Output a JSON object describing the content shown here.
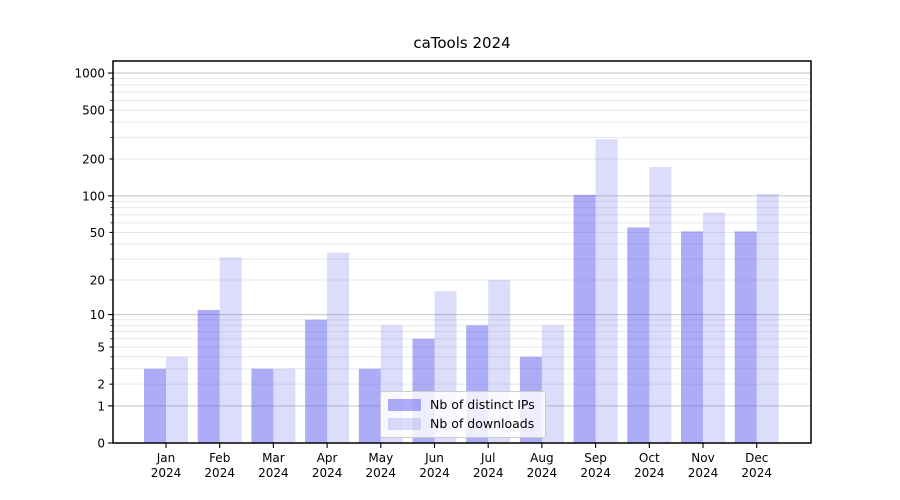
{
  "title": "caTools 2024",
  "chart_data": {
    "type": "bar",
    "title": "caTools 2024",
    "scale": "log1p",
    "categories": [
      "Jan 2024",
      "Feb 2024",
      "Mar 2024",
      "Apr 2024",
      "May 2024",
      "Jun 2024",
      "Jul 2024",
      "Aug 2024",
      "Sep 2024",
      "Oct 2024",
      "Nov 2024",
      "Dec 2024"
    ],
    "series": [
      {
        "name": "Nb of distinct IPs",
        "values": [
          3,
          11,
          3,
          9,
          3,
          6,
          8,
          4,
          102,
          55,
          51,
          51
        ]
      },
      {
        "name": "Nb of downloads",
        "values": [
          4,
          31,
          3,
          34,
          8,
          16,
          20,
          8,
          290,
          172,
          73,
          104
        ]
      }
    ],
    "yticks": [
      0,
      1,
      2,
      5,
      10,
      20,
      50,
      100,
      200,
      500,
      1000
    ],
    "major_gridlines": [
      1,
      10,
      100,
      1000
    ],
    "minor_gridlines": [
      2,
      3,
      4,
      5,
      6,
      7,
      8,
      9,
      20,
      30,
      40,
      50,
      60,
      70,
      80,
      90,
      200,
      300,
      400,
      500,
      600,
      700,
      800,
      900
    ],
    "ylim": [
      0,
      1252
    ],
    "grid": true,
    "legend_position": "lower center",
    "colors": {
      "bar_dark": "rgba(95,95,240,0.52)",
      "bar_light": "rgba(130,130,242,0.28)",
      "major_grid": "#c3c3c3",
      "minor_grid": "#e8e8e8",
      "spine": "#000000",
      "text": "#000000"
    }
  }
}
